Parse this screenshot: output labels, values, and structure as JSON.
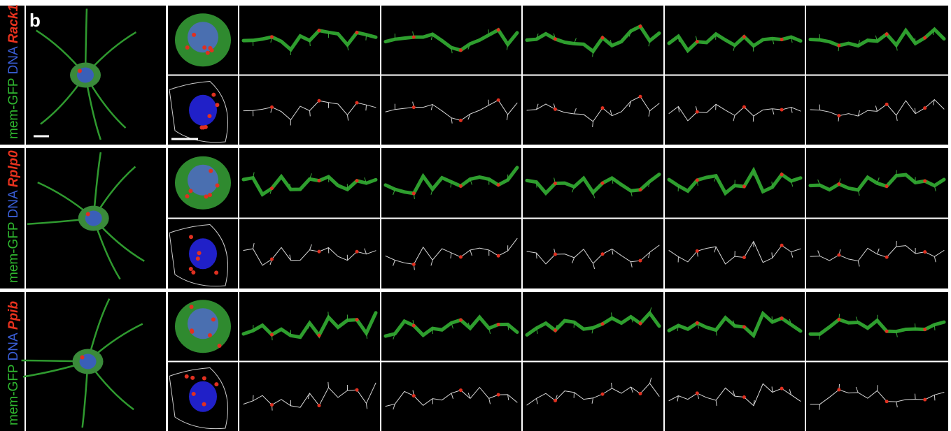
{
  "panel_label": "b",
  "rows": [
    {
      "labels": [
        "mem-GFP",
        "DNA",
        "Rack1"
      ]
    },
    {
      "labels": [
        "mem-GFP",
        "DNA",
        "Rplp0"
      ]
    },
    {
      "labels": [
        "mem-GFP",
        "DNA",
        "Ppib"
      ]
    }
  ]
}
